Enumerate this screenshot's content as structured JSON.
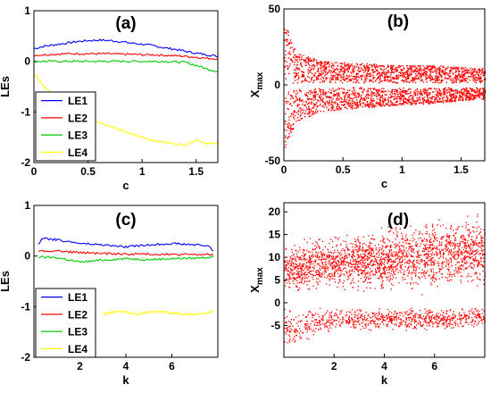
{
  "chart_data": [
    {
      "panel": "(a)",
      "type": "line",
      "xlabel": "c",
      "ylabel": "LEs",
      "xlim": [
        0,
        1.7
      ],
      "ylim": [
        -2,
        1
      ],
      "xticks": [
        "0",
        "0.5",
        "1",
        "1.5"
      ],
      "xtick_values": [
        0,
        0.5,
        1,
        1.5
      ],
      "yticks": [
        "-2",
        "-1",
        "0",
        "1"
      ],
      "ytick_values": [
        -2,
        -1,
        0,
        1
      ],
      "legend": {
        "position": "bottom-left",
        "entries": [
          "LE1",
          "LE2",
          "LE3",
          "LE4"
        ]
      },
      "series": [
        {
          "name": "LE1",
          "color": "#0000ff",
          "x": [
            0,
            0.1,
            0.2,
            0.3,
            0.4,
            0.5,
            0.6,
            0.7,
            0.8,
            0.9,
            1.0,
            1.1,
            1.2,
            1.3,
            1.4,
            1.5,
            1.6,
            1.7
          ],
          "y": [
            0.25,
            0.3,
            0.33,
            0.36,
            0.39,
            0.41,
            0.42,
            0.41,
            0.39,
            0.36,
            0.34,
            0.31,
            0.27,
            0.24,
            0.2,
            0.16,
            0.13,
            0.1
          ]
        },
        {
          "name": "LE2",
          "color": "#ff0000",
          "x": [
            0,
            0.1,
            0.2,
            0.3,
            0.4,
            0.5,
            0.6,
            0.7,
            0.8,
            0.9,
            1.0,
            1.1,
            1.2,
            1.3,
            1.4,
            1.5,
            1.6,
            1.7
          ],
          "y": [
            0.12,
            0.13,
            0.14,
            0.15,
            0.15,
            0.15,
            0.15,
            0.15,
            0.14,
            0.14,
            0.13,
            0.13,
            0.12,
            0.11,
            0.1,
            0.08,
            0.06,
            0.05
          ]
        },
        {
          "name": "LE3",
          "color": "#00cc00",
          "x": [
            0,
            0.2,
            0.4,
            0.6,
            0.8,
            1.0,
            1.2,
            1.4,
            1.5,
            1.6,
            1.7
          ],
          "y": [
            0,
            0,
            0,
            0,
            0,
            0,
            0,
            -0.02,
            -0.08,
            -0.15,
            -0.2
          ]
        },
        {
          "name": "LE4",
          "color": "#ffff00",
          "x": [
            0,
            0.1,
            0.2,
            0.3,
            0.4,
            0.5,
            0.6,
            0.7,
            0.8,
            0.9,
            1.0,
            1.1,
            1.2,
            1.3,
            1.4,
            1.5,
            1.6,
            1.7
          ],
          "y": [
            -0.25,
            -0.5,
            -0.7,
            -0.86,
            -1.0,
            -1.1,
            -1.2,
            -1.28,
            -1.36,
            -1.44,
            -1.5,
            -1.56,
            -1.6,
            -1.63,
            -1.65,
            -1.55,
            -1.62,
            -1.63
          ]
        }
      ]
    },
    {
      "panel": "(b)",
      "type": "scatter",
      "xlabel": "c",
      "ylabel": "X",
      "ylabel_sub": "max",
      "xlim": [
        0,
        1.7
      ],
      "ylim": [
        -50,
        50
      ],
      "xticks": [
        "0",
        "0.5",
        "1",
        "1.5"
      ],
      "xtick_values": [
        0,
        0.5,
        1,
        1.5
      ],
      "yticks": [
        "-50",
        "0",
        "50"
      ],
      "ytick_values": [
        -50,
        0,
        50
      ],
      "color": "#ff0000",
      "envelope": {
        "x": [
          0,
          0.02,
          0.1,
          0.3,
          0.5,
          0.8,
          1.0,
          1.3,
          1.5,
          1.7
        ],
        "y_high": [
          45,
          38,
          22,
          16,
          15,
          14,
          13,
          13,
          12,
          11
        ],
        "y_low": [
          -45,
          -38,
          -24,
          -18,
          -16,
          -14,
          -13,
          -12,
          -10,
          -9
        ]
      }
    },
    {
      "panel": "(c)",
      "type": "line",
      "xlabel": "k",
      "ylabel": "LEs",
      "xlim": [
        0,
        8
      ],
      "ylim": [
        -2,
        1
      ],
      "xticks": [
        "2",
        "4",
        "6"
      ],
      "xtick_values": [
        2,
        4,
        6
      ],
      "yticks": [
        "-2",
        "-1",
        "0",
        "1"
      ],
      "ytick_values": [
        -2,
        -1,
        0,
        1
      ],
      "legend": {
        "position": "bottom-left",
        "entries": [
          "LE1",
          "LE2",
          "LE3",
          "LE4"
        ]
      },
      "series": [
        {
          "name": "LE1",
          "color": "#0000ff",
          "x": [
            0.2,
            0.4,
            1,
            2,
            3,
            4,
            5,
            6,
            7,
            7.6,
            7.8
          ],
          "y": [
            0.25,
            0.35,
            0.32,
            0.25,
            0.22,
            0.18,
            0.22,
            0.25,
            0.22,
            0.2,
            0.1
          ]
        },
        {
          "name": "LE2",
          "color": "#ff0000",
          "x": [
            0.2,
            1,
            2,
            3,
            4,
            5,
            6,
            7,
            7.8
          ],
          "y": [
            0.1,
            0.1,
            0.07,
            0.05,
            0.04,
            0.04,
            0.03,
            0.03,
            0.03
          ]
        },
        {
          "name": "LE3",
          "color": "#00cc00",
          "x": [
            0.2,
            1,
            2,
            3,
            4,
            5,
            6,
            7,
            7.8
          ],
          "y": [
            -0.02,
            -0.03,
            -0.12,
            -0.08,
            -0.05,
            -0.07,
            -0.05,
            -0.04,
            -0.02
          ]
        },
        {
          "name": "LE4",
          "color": "#ffff00",
          "x": [
            3,
            3.5,
            4,
            4.5,
            5,
            5.5,
            6,
            6.5,
            7,
            7.5,
            7.8
          ],
          "y": [
            -1.15,
            -1.1,
            -1.1,
            -1.15,
            -1.1,
            -1.1,
            -1.12,
            -1.15,
            -1.15,
            -1.12,
            -1.1
          ]
        }
      ]
    },
    {
      "panel": "(d)",
      "type": "scatter",
      "xlabel": "k",
      "ylabel": "X",
      "ylabel_sub": "max",
      "xlim": [
        0,
        8
      ],
      "ylim": [
        -12,
        22
      ],
      "xticks": [
        "2",
        "4",
        "6"
      ],
      "xtick_values": [
        2,
        4,
        6
      ],
      "yticks": [
        "-5",
        "0",
        "5",
        "10",
        "15",
        "20"
      ],
      "ytick_values": [
        -5,
        0,
        5,
        10,
        15,
        20
      ],
      "color": "#ff0000",
      "upper_band": {
        "x": [
          0,
          2,
          4,
          6,
          8
        ],
        "low": [
          1.5,
          1.5,
          1.5,
          1.5,
          1.5
        ],
        "high": [
          14,
          16,
          18,
          20,
          21
        ]
      },
      "lower_band": {
        "x": [
          0,
          2,
          4,
          6,
          8
        ],
        "low": [
          -10,
          -6,
          -6,
          -6,
          -5
        ],
        "high": [
          -1,
          -1,
          -1,
          -1,
          -1
        ]
      }
    }
  ]
}
